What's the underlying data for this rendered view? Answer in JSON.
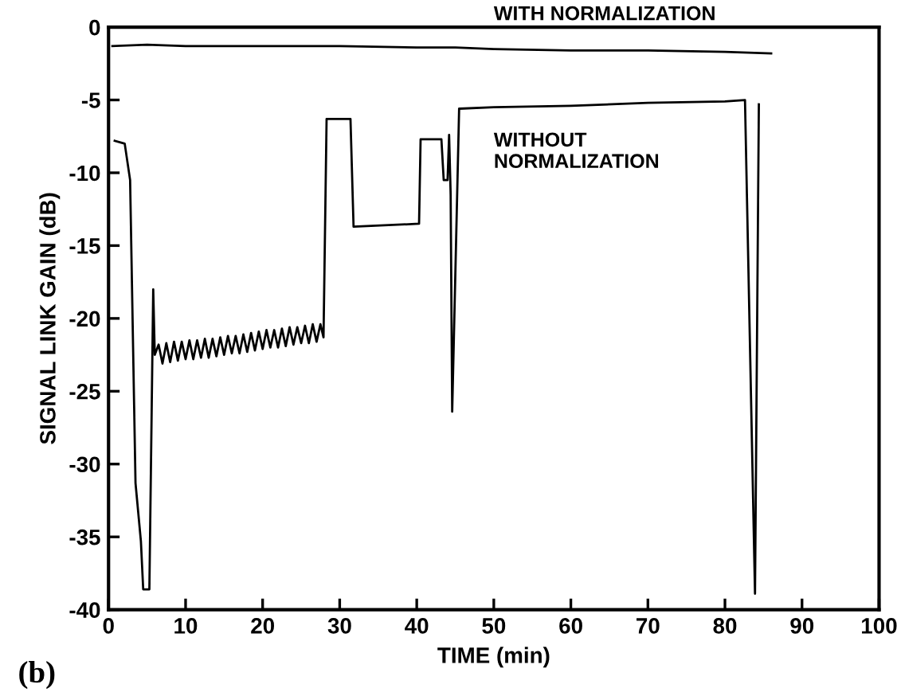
{
  "chart_data": {
    "type": "line",
    "xlabel": "TIME (min)",
    "ylabel": "SIGNAL LINK GAIN (dB)",
    "xlim": [
      0,
      100
    ],
    "ylim": [
      -40,
      0
    ],
    "xticks": [
      0,
      10,
      20,
      30,
      40,
      50,
      60,
      70,
      80,
      90,
      100
    ],
    "yticks": [
      -40,
      -35,
      -30,
      -25,
      -20,
      -15,
      -10,
      -5,
      0
    ],
    "grid": false,
    "legend": false,
    "marker": "none",
    "line_style": "solid",
    "series": [
      {
        "color": "#000000",
        "x": [
          0.5,
          5,
          10,
          20,
          30,
          40,
          45,
          50,
          60,
          70,
          80,
          86
        ],
        "values": [
          -1.3,
          -1.2,
          -1.3,
          -1.3,
          -1.3,
          -1.4,
          -1.4,
          -1.5,
          -1.6,
          -1.6,
          -1.7,
          -1.8
        ]
      },
      {
        "color": "#000000",
        "x": [
          0.8,
          2.1,
          2.8,
          3.5,
          4.2,
          4.5,
          5.3,
          5.8,
          6.0,
          6.5,
          7.0,
          7.5,
          8.0,
          8.5,
          9.0,
          9.5,
          10.0,
          10.5,
          11.0,
          11.5,
          12.0,
          12.5,
          13.0,
          13.5,
          14.0,
          14.5,
          15.0,
          15.5,
          16.0,
          16.5,
          17.0,
          17.5,
          18.0,
          18.5,
          19.0,
          19.5,
          20.0,
          20.5,
          21.0,
          21.5,
          22.0,
          22.5,
          23.0,
          23.5,
          24.0,
          24.5,
          25.0,
          25.5,
          26.0,
          26.5,
          27.0,
          27.5,
          27.9,
          28.3,
          31.4,
          31.8,
          40.3,
          40.5,
          43.2,
          43.5,
          44.0,
          44.2,
          44.4,
          44.6,
          45.5,
          50,
          60,
          70,
          80,
          82.6,
          83.9,
          84.4
        ],
        "values": [
          -7.8,
          -8.0,
          -10.5,
          -31.3,
          -35.3,
          -38.6,
          -38.6,
          -18.0,
          -22.5,
          -21.8,
          -23.1,
          -21.7,
          -23.0,
          -21.6,
          -22.9,
          -21.6,
          -22.8,
          -21.5,
          -22.8,
          -21.5,
          -22.7,
          -21.4,
          -22.7,
          -21.4,
          -22.6,
          -21.3,
          -22.5,
          -21.2,
          -22.4,
          -21.2,
          -22.4,
          -21.1,
          -22.3,
          -21.0,
          -22.2,
          -20.9,
          -22.1,
          -20.8,
          -22.0,
          -20.8,
          -22.0,
          -20.7,
          -21.9,
          -20.6,
          -21.8,
          -20.6,
          -21.7,
          -20.5,
          -21.7,
          -20.4,
          -21.6,
          -20.4,
          -21.3,
          -6.3,
          -6.3,
          -13.7,
          -13.5,
          -7.7,
          -7.7,
          -10.5,
          -10.5,
          -7.4,
          -11.5,
          -26.4,
          -5.6,
          -5.5,
          -5.4,
          -5.2,
          -5.1,
          -5.0,
          -38.9,
          -5.3
        ]
      }
    ],
    "annotations": [
      "WITH NORMALIZATION",
      "WITHOUT\nNORMALIZATION",
      "(b)"
    ]
  }
}
